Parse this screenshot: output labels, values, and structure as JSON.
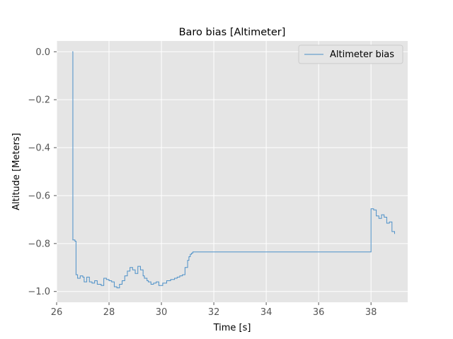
{
  "chart_data": {
    "type": "line",
    "title": "Baro bias [Altimeter]",
    "xlabel": "Time [s]",
    "ylabel": "Altitude [Meters]",
    "xlim": [
      26.0,
      39.4
    ],
    "ylim": [
      -1.045,
      0.045
    ],
    "xticks": [
      26,
      28,
      30,
      32,
      34,
      36,
      38
    ],
    "xtick_labels": [
      "26",
      "28",
      "30",
      "32",
      "34",
      "36",
      "38"
    ],
    "yticks": [
      0.0,
      -0.2,
      -0.4,
      -0.6,
      -0.8,
      -1.0
    ],
    "ytick_labels": [
      "0.0",
      "−0.2",
      "−0.4",
      "−0.6",
      "−0.8",
      "−1.0"
    ],
    "grid": true,
    "legend_position": "top-right",
    "series": [
      {
        "name": "Altimeter bias",
        "color": "#4c90c8",
        "step": true,
        "x": [
          26.6,
          26.62,
          26.7,
          26.74,
          26.8,
          26.9,
          27.0,
          27.05,
          27.15,
          27.25,
          27.35,
          27.45,
          27.55,
          27.7,
          27.8,
          27.9,
          28.0,
          28.1,
          28.2,
          28.3,
          28.4,
          28.5,
          28.6,
          28.7,
          28.8,
          28.9,
          29.0,
          29.1,
          29.2,
          29.3,
          29.35,
          29.45,
          29.5,
          29.6,
          29.7,
          29.8,
          29.9,
          30.05,
          30.2,
          30.35,
          30.5,
          30.6,
          30.7,
          30.8,
          30.9,
          31.0,
          31.05,
          31.1,
          31.15,
          31.2,
          31.3,
          31.4,
          32.0,
          33.0,
          34.0,
          35.0,
          36.0,
          37.0,
          37.98,
          38.0,
          38.1,
          38.2,
          38.3,
          38.4,
          38.5,
          38.6,
          38.7,
          38.8,
          38.9
        ],
        "y": [
          0.0,
          -0.785,
          -0.79,
          -0.93,
          -0.945,
          -0.935,
          -0.94,
          -0.96,
          -0.94,
          -0.96,
          -0.965,
          -0.955,
          -0.97,
          -0.975,
          -0.945,
          -0.95,
          -0.955,
          -0.96,
          -0.98,
          -0.985,
          -0.97,
          -0.955,
          -0.935,
          -0.915,
          -0.9,
          -0.91,
          -0.925,
          -0.895,
          -0.91,
          -0.935,
          -0.945,
          -0.955,
          -0.96,
          -0.97,
          -0.965,
          -0.96,
          -0.975,
          -0.965,
          -0.955,
          -0.95,
          -0.945,
          -0.94,
          -0.935,
          -0.93,
          -0.9,
          -0.87,
          -0.855,
          -0.845,
          -0.84,
          -0.835,
          -0.835,
          -0.835,
          -0.835,
          -0.835,
          -0.835,
          -0.835,
          -0.835,
          -0.835,
          -0.835,
          -0.655,
          -0.66,
          -0.685,
          -0.695,
          -0.68,
          -0.69,
          -0.715,
          -0.71,
          -0.75,
          -0.76
        ]
      }
    ]
  }
}
